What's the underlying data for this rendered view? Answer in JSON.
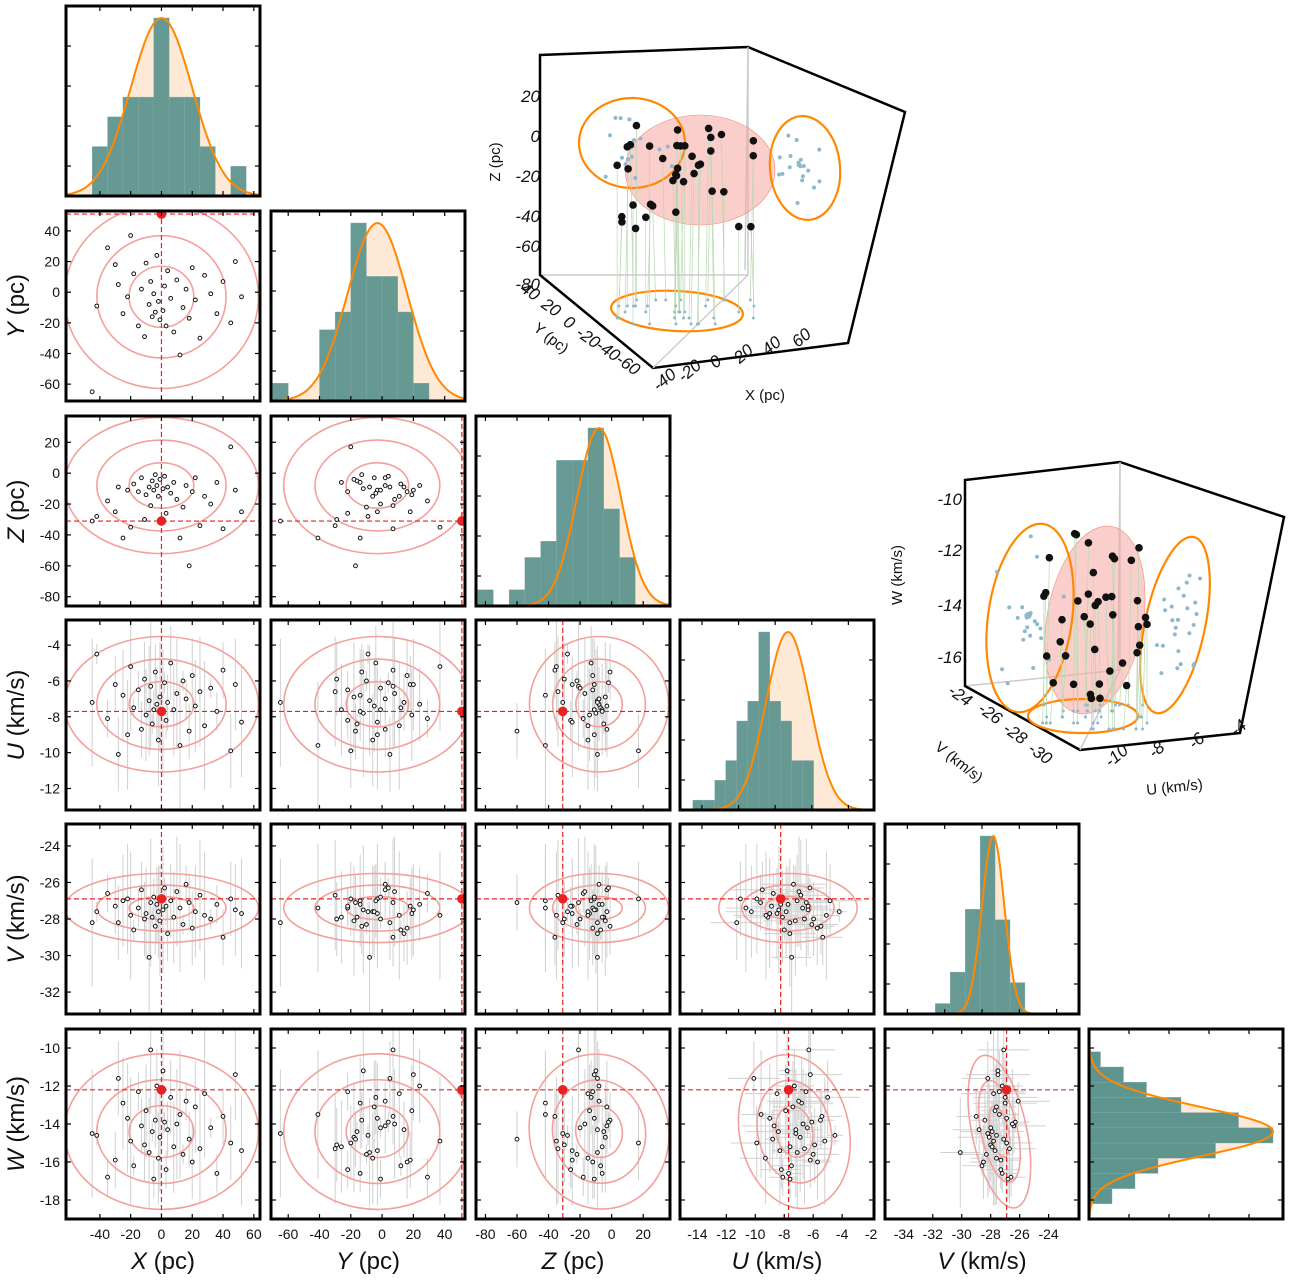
{
  "chart_data": {
    "type": "scatter",
    "description_keys": [
      "X",
      "Y",
      "Z",
      "U",
      "V",
      "W"
    ],
    "colors": {
      "hist_fill": "#5f958f",
      "hist_outlier": "#4e9aa6",
      "curve": "#ff8800",
      "curve_fill": "#fde9d6",
      "contour": "#f4a09a",
      "marker": "#e82222",
      "points": "#111111",
      "errbar": "#d0d0d0",
      "sphere": "#f5a8a0",
      "proj": "#8fb8cc"
    },
    "variables": [
      {
        "key": "X",
        "label_italic": "X",
        "label_unit": "(pc)",
        "range": [
          -62,
          64
        ],
        "ticks": [
          -40,
          -20,
          0,
          20,
          40,
          60
        ],
        "ref": 0,
        "mean": 0,
        "sd": 20
      },
      {
        "key": "Y",
        "label_italic": "Y",
        "label_unit": "(pc)",
        "range": [
          -71,
          53
        ],
        "ticks": [
          -60,
          -40,
          -20,
          0,
          20,
          40
        ],
        "ref": 51,
        "mean": -3,
        "sd": 19
      },
      {
        "key": "Z",
        "label_italic": "Z",
        "label_unit": "(pc)",
        "range": [
          -86,
          37
        ],
        "ticks": [
          -80,
          -60,
          -40,
          -20,
          0,
          20
        ],
        "ref": -31,
        "mean": -8,
        "sd": 14
      },
      {
        "key": "U",
        "label_italic": "U",
        "label_unit": "(km/s)",
        "range": [
          -13.2,
          -2.6
        ],
        "ticks": [
          -12,
          -10,
          -8,
          -6,
          -4
        ],
        "ticks_bottom": [
          -14,
          -12,
          -10,
          -8,
          -6,
          -4,
          -2
        ],
        "range_bottom": [
          -15.2,
          -1.8
        ],
        "ref": -7.7,
        "mean": -7.3,
        "sd": 1.2
      },
      {
        "key": "V",
        "label_italic": "V",
        "label_unit": "(km/s)",
        "range": [
          -33.2,
          -22.8
        ],
        "ticks": [
          -32,
          -30,
          -28,
          -26,
          -24
        ],
        "ticks_bottom": [
          -34,
          -32,
          -30,
          -28,
          -26,
          -24
        ],
        "range_bottom": [
          -35.3,
          -21.9
        ],
        "ref": -26.9,
        "mean": -27.4,
        "sd": 0.6
      },
      {
        "key": "W",
        "label_italic": "W",
        "label_unit": "(km/s)",
        "range": [
          -19,
          -9
        ],
        "ticks": [
          -18,
          -16,
          -14,
          -12,
          -10
        ],
        "ref": -12.2,
        "mean": -14.4,
        "sd": 1.3
      }
    ],
    "histograms": [
      {
        "key": "X",
        "bin_edges": [
          -45,
          -35,
          -25,
          -15,
          -5,
          5,
          15,
          25,
          35,
          45,
          55
        ],
        "counts": [
          5,
          8,
          10,
          10,
          18,
          10,
          10,
          5,
          0,
          3,
          1
        ]
      },
      {
        "key": "Y",
        "bin_edges": [
          -70,
          -60,
          -50,
          -40,
          -30,
          -20,
          -10,
          0,
          10,
          20,
          30
        ],
        "counts": [
          1,
          0,
          0,
          4,
          5,
          10,
          7,
          7,
          5,
          1,
          0
        ]
      },
      {
        "key": "Z",
        "bin_edges": [
          -85,
          -75,
          -65,
          -55,
          -45,
          -35,
          -25,
          -15,
          -5,
          5,
          15
        ],
        "counts": [
          1,
          0,
          1,
          3,
          4,
          9,
          9,
          11,
          6,
          3,
          0
        ]
      },
      {
        "key": "U",
        "bin_edges": [
          -12.5,
          -11.9,
          -11.3,
          -10.7,
          -10.1,
          -9.5,
          -8.9,
          -8.3,
          -7.7,
          -7.1,
          -6.5,
          -5.9
        ],
        "counts": [
          1,
          1,
          3,
          5,
          9,
          11,
          18,
          11,
          9,
          5,
          5
        ]
      },
      {
        "key": "V",
        "bin_edges": [
          -30.5,
          -29.7,
          -28.9,
          -28.1,
          -27.3,
          -26.5,
          -25.7,
          -24.9
        ],
        "counts": [
          1,
          4,
          10,
          17,
          9,
          3,
          0
        ]
      },
      {
        "key": "W",
        "bin_edges": [
          -18.2,
          -17.4,
          -16.6,
          -15.8,
          -15.0,
          -14.2,
          -13.4,
          -12.6,
          -11.8,
          -11.0,
          -10.2
        ],
        "counts": [
          2,
          4,
          6,
          11,
          16,
          13,
          8,
          5,
          3,
          1
        ]
      }
    ],
    "points": [
      {
        "X": -42,
        "Y": -9,
        "Z": -28,
        "U": -4.5,
        "V": -27.6,
        "W": -14.6
      },
      {
        "X": -35,
        "Y": 29,
        "Z": -18,
        "U": -8.1,
        "V": -26.6,
        "W": -16.8
      },
      {
        "X": -30,
        "Y": 18,
        "Z": -25,
        "U": -6.2,
        "V": -27.3,
        "W": -15.9
      },
      {
        "X": -28,
        "Y": 5,
        "Z": -9,
        "U": -10.1,
        "V": -28.2,
        "W": -11.6
      },
      {
        "X": -25,
        "Y": -14,
        "Z": -42,
        "U": -6.8,
        "V": -27.0,
        "W": -12.9
      },
      {
        "X": -22,
        "Y": -3,
        "Z": -11,
        "U": -9.0,
        "V": -26.9,
        "W": -13.7
      },
      {
        "X": -20,
        "Y": 37,
        "Z": -35,
        "U": -5.2,
        "V": -27.8,
        "W": -14.9
      },
      {
        "X": -18,
        "Y": 12,
        "Z": -7,
        "U": -7.5,
        "V": -28.6,
        "W": -16.2
      },
      {
        "X": -15,
        "Y": -22,
        "Z": -12,
        "U": -6.5,
        "V": -27.4,
        "W": -12.3
      },
      {
        "X": -13,
        "Y": 2,
        "Z": -3,
        "U": -8.7,
        "V": -26.4,
        "W": -14.1
      },
      {
        "X": -11,
        "Y": -29,
        "Z": -30,
        "U": -5.9,
        "V": -28.0,
        "W": -15.1
      },
      {
        "X": -10,
        "Y": 19,
        "Z": -14,
        "U": -7.9,
        "V": -27.7,
        "W": -13.3
      },
      {
        "X": -8,
        "Y": -8,
        "Z": -9,
        "U": -7.1,
        "V": -30.1,
        "W": -15.5
      },
      {
        "X": -7,
        "Y": 7,
        "Z": -21,
        "U": -6.3,
        "V": -27.1,
        "W": -10.1
      },
      {
        "X": -6,
        "Y": -16,
        "Z": -5,
        "U": -8.4,
        "V": -27.9,
        "W": -14.4
      },
      {
        "X": -5,
        "Y": -1,
        "Z": -11,
        "U": -7.6,
        "V": -26.8,
        "W": -16.9
      },
      {
        "X": -4,
        "Y": -13,
        "Z": -1,
        "U": -5.5,
        "V": -28.4,
        "W": -13.8
      },
      {
        "X": -3,
        "Y": 24,
        "Z": -8,
        "U": -7.3,
        "V": -27.2,
        "W": -12.0
      },
      {
        "X": -2,
        "Y": -6,
        "Z": -15,
        "U": -9.3,
        "V": -27.6,
        "W": -15.8
      },
      {
        "X": -1,
        "Y": -18,
        "Z": -4,
        "U": -6.9,
        "V": -28.1,
        "W": -14.7
      },
      {
        "X": 1,
        "Y": -12,
        "Z": -10,
        "U": -7.8,
        "V": -27.5,
        "W": -11.2
      },
      {
        "X": 2,
        "Y": 4,
        "Z": -2,
        "U": -6.1,
        "V": -26.3,
        "W": -13.9
      },
      {
        "X": 3,
        "Y": -22,
        "Z": -26,
        "U": -8.2,
        "V": -27.3,
        "W": -16.4
      },
      {
        "X": 4,
        "Y": 14,
        "Z": -9,
        "U": -7.2,
        "V": -28.8,
        "W": -14.3
      },
      {
        "X": 6,
        "Y": -4,
        "Z": -13,
        "U": -5.0,
        "V": -27.0,
        "W": -12.6
      },
      {
        "X": 8,
        "Y": -26,
        "Z": -6,
        "U": -7.6,
        "V": -27.9,
        "W": -15.2
      },
      {
        "X": 10,
        "Y": 8,
        "Z": -17,
        "U": -6.7,
        "V": -26.5,
        "W": -14.0
      },
      {
        "X": 12,
        "Y": -41,
        "Z": -42,
        "U": -9.6,
        "V": -27.4,
        "W": -13.5
      },
      {
        "X": 14,
        "Y": -10,
        "Z": -22,
        "U": -6.0,
        "V": -28.3,
        "W": -15.6
      },
      {
        "X": 16,
        "Y": 2,
        "Z": -8,
        "U": -7.0,
        "V": -26.1,
        "W": -12.8
      },
      {
        "X": 18,
        "Y": -17,
        "Z": -60,
        "U": -8.8,
        "V": -27.1,
        "W": -14.8
      },
      {
        "X": 20,
        "Y": 16,
        "Z": -12,
        "U": -5.7,
        "V": -28.5,
        "W": -16.0
      },
      {
        "X": 22,
        "Y": -5,
        "Z": -3,
        "U": -7.4,
        "V": -27.6,
        "W": -13.1
      },
      {
        "X": 25,
        "Y": -30,
        "Z": -34,
        "U": -6.6,
        "V": -26.7,
        "W": -15.3
      },
      {
        "X": 28,
        "Y": 11,
        "Z": -15,
        "U": -8.5,
        "V": -27.8,
        "W": -12.4
      },
      {
        "X": 32,
        "Y": -1,
        "Z": -20,
        "U": -6.4,
        "V": -28.0,
        "W": -14.2
      },
      {
        "X": 36,
        "Y": -14,
        "Z": -6,
        "U": -7.7,
        "V": -27.2,
        "W": -16.6
      },
      {
        "X": 40,
        "Y": 7,
        "Z": -36,
        "U": -5.4,
        "V": -29.0,
        "W": -13.6
      },
      {
        "X": 45,
        "Y": -20,
        "Z": 17,
        "U": -9.9,
        "V": -26.9,
        "W": -15.0
      },
      {
        "X": 48,
        "Y": 20,
        "Z": -11,
        "U": -6.2,
        "V": -27.5,
        "W": -11.4
      },
      {
        "X": 52,
        "Y": -3,
        "Z": -25,
        "U": -8.3,
        "V": -27.7,
        "W": -15.4
      },
      {
        "X": -45,
        "Y": -65,
        "Z": -31,
        "U": -7.2,
        "V": -28.2,
        "W": -14.5
      }
    ],
    "panel_3d_pos": {
      "title": "",
      "xlabel": "X  (pc)",
      "ylabel": "Y  (pc)",
      "zlabel": "Z  (pc)",
      "x_ticks": [
        "-40",
        "-20",
        "0",
        "20",
        "40",
        "60"
      ],
      "y_ticks": [
        "40",
        "20",
        "0",
        "-20",
        "-40",
        "-60"
      ],
      "z_ticks": [
        "20",
        "0",
        "-20",
        "-40",
        "-60",
        "-80"
      ]
    },
    "panel_3d_vel": {
      "title": "",
      "xlabel": "U  (km/s)",
      "ylabel": "V  (km/s)",
      "zlabel": "W  (km/s)",
      "x_ticks": [
        "-10",
        "-8",
        "-6",
        "-4"
      ],
      "y_ticks": [
        "-24",
        "-26",
        "-28",
        "-30"
      ],
      "z_ticks": [
        "-10",
        "-12",
        "-14",
        "-16"
      ]
    }
  }
}
